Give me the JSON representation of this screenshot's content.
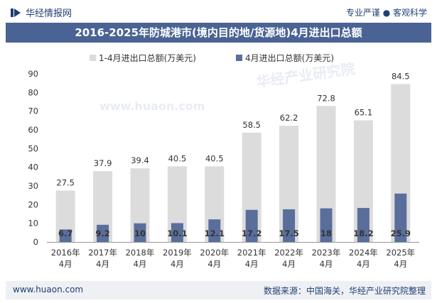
{
  "header": {
    "brand": "华经情报网",
    "slogan": "专业严谨 ● 客观科学",
    "logo_icon": "bar-logo-icon"
  },
  "title": "2016-2025年防城港市(境内目的地/货源地)4月进出口总额",
  "footer": {
    "site": "www.huaon.com",
    "source": "数据来源：中国海关，华经产业研究院整理"
  },
  "watermarks": [
    "华经产业研究院",
    "www.huaon.com"
  ],
  "colors": {
    "total_bar": "#dcdcdc",
    "april_bar": "#5a6e9c",
    "title_bg": "#4a6394",
    "text": "#333333"
  },
  "chart_data": {
    "type": "bar",
    "categories": [
      "2016年\n4月",
      "2017年\n4月",
      "2018年\n4月",
      "2019年\n4月",
      "2020年\n4月",
      "2021年\n4月",
      "2022年\n4月",
      "2023年\n4月",
      "2024年\n4月",
      "2025年\n4月"
    ],
    "series": [
      {
        "name": "1-4月进出口总额(万美元)",
        "values": [
          27.5,
          37.9,
          39.4,
          40.5,
          40.5,
          58.5,
          62.2,
          72.8,
          65.1,
          84.5
        ],
        "value_labels": [
          "27.5",
          "37.9",
          "39.4",
          "40.5",
          "40.5",
          "58.5",
          "62.2",
          "72.8",
          "65.1",
          "84.5"
        ]
      },
      {
        "name": "4月进出口总额(万美元)",
        "values": [
          6.7,
          9.2,
          10,
          10.1,
          12.1,
          17.2,
          17.5,
          18,
          18.2,
          25.9
        ],
        "value_labels": [
          "6.7",
          "9.2",
          "10",
          "10.1",
          "12.1",
          "17.2",
          "17.5",
          "18",
          "18.2",
          "25.9"
        ]
      }
    ],
    "ylim": [
      0,
      90
    ],
    "yticks": [
      0,
      10,
      20,
      30,
      40,
      50,
      60,
      70,
      80,
      90
    ],
    "grid": false,
    "legend_position": "top-center",
    "bar_mode": "overlay"
  }
}
